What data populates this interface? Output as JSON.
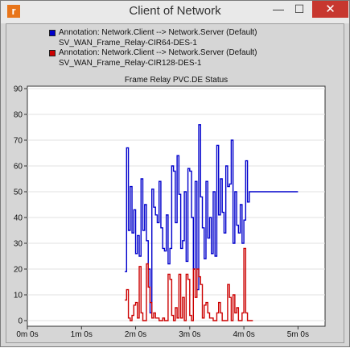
{
  "window": {
    "title": "Client of Network",
    "app_icon": "r",
    "minimize_icon": "minimize-icon",
    "maximize_icon": "maximize-icon",
    "close_icon": "close-icon"
  },
  "legend": [
    {
      "line1": "Annotation: Network.Client --> Network.Server (Default)",
      "line2": "SV_WAN_Frame_Relay-CIR64-DES-1",
      "color": "#0000cc"
    },
    {
      "line1": "Annotation: Network.Client --> Network.Server (Default)",
      "line2": "SV_WAN_Frame_Relay-CIR128-DES-1",
      "color": "#cc0000"
    }
  ],
  "chart_data": {
    "type": "line",
    "title": "Frame Relay PVC.DE Status",
    "xlabel": "",
    "ylabel": "",
    "ylim": [
      0,
      90
    ],
    "xlim": [
      0,
      330
    ],
    "y_ticks": [
      0,
      10,
      20,
      30,
      40,
      50,
      60,
      70,
      80,
      90
    ],
    "x_ticks": [
      0,
      60,
      120,
      180,
      240,
      300
    ],
    "x_tick_labels": [
      "0m 0s",
      "1m 0s",
      "2m 0s",
      "3m 0s",
      "4m 0s",
      "5m 0s"
    ],
    "grid": true,
    "series": [
      {
        "name": "SV_WAN_Frame_Relay-CIR64-DES-1",
        "color": "#0000cc",
        "step": true,
        "x": [
          108,
          110,
          112,
          114,
          116,
          118,
          120,
          122,
          124,
          126,
          128,
          130,
          132,
          134,
          136,
          138,
          140,
          142,
          144,
          146,
          148,
          150,
          152,
          154,
          156,
          158,
          160,
          162,
          164,
          166,
          168,
          170,
          172,
          174,
          176,
          178,
          180,
          182,
          184,
          186,
          188,
          190,
          192,
          194,
          196,
          198,
          200,
          202,
          204,
          206,
          208,
          210,
          212,
          214,
          216,
          218,
          220,
          222,
          224,
          226,
          228,
          230,
          232,
          234,
          236,
          238,
          240,
          242,
          244,
          246,
          248,
          250,
          252,
          254,
          256,
          258,
          260,
          262,
          264,
          266,
          268,
          270,
          272,
          274,
          276,
          278,
          280,
          282,
          284,
          286,
          288,
          290,
          292,
          294,
          296,
          298,
          300
        ],
        "y": [
          19,
          67,
          35,
          52,
          34,
          43,
          26,
          33,
          25,
          55,
          35,
          45,
          31,
          20,
          3,
          51,
          44,
          41,
          38,
          54,
          36,
          28,
          27,
          41,
          22,
          28,
          60,
          58,
          38,
          64,
          49,
          28,
          31,
          50,
          23,
          59,
          58,
          40,
          20,
          54,
          12,
          76,
          48,
          36,
          24,
          54,
          32,
          40,
          26,
          50,
          25,
          68,
          41,
          55,
          42,
          34,
          60,
          52,
          53,
          70,
          30,
          50,
          37,
          34,
          45,
          30,
          39,
          62,
          46,
          50,
          50,
          50,
          50,
          50,
          50,
          50,
          50,
          50,
          50,
          50,
          50,
          50,
          50,
          50,
          50,
          50,
          50,
          50,
          50,
          50,
          50,
          50,
          50,
          50,
          50,
          50,
          50
        ]
      },
      {
        "name": "SV_WAN_Frame_Relay-CIR128-DES-1",
        "color": "#cc0000",
        "step": true,
        "x": [
          108,
          110,
          112,
          114,
          116,
          118,
          120,
          122,
          124,
          126,
          128,
          130,
          132,
          134,
          136,
          138,
          140,
          142,
          144,
          146,
          148,
          150,
          152,
          154,
          156,
          158,
          160,
          162,
          164,
          166,
          168,
          170,
          172,
          174,
          176,
          178,
          180,
          182,
          184,
          186,
          188,
          190,
          192,
          194,
          196,
          198,
          200,
          202,
          204,
          206,
          208,
          210,
          212,
          214,
          216,
          218,
          220,
          222,
          224,
          226,
          228,
          230,
          232,
          234,
          236,
          238,
          240,
          242,
          244,
          246,
          248,
          250
        ],
        "y": [
          8,
          12,
          1,
          0,
          2,
          6,
          7,
          1,
          21,
          3,
          0,
          0,
          22,
          13,
          7,
          1,
          3,
          1,
          1,
          0,
          0,
          1,
          0,
          0,
          18,
          16,
          2,
          0,
          5,
          1,
          18,
          1,
          9,
          0,
          18,
          16,
          2,
          0,
          20,
          9,
          20,
          17,
          14,
          1,
          6,
          7,
          3,
          1,
          1,
          0,
          0,
          3,
          7,
          3,
          0,
          0,
          0,
          14,
          9,
          0,
          10,
          3,
          5,
          0,
          0,
          3,
          28,
          3,
          0,
          0,
          0,
          0
        ]
      }
    ]
  }
}
